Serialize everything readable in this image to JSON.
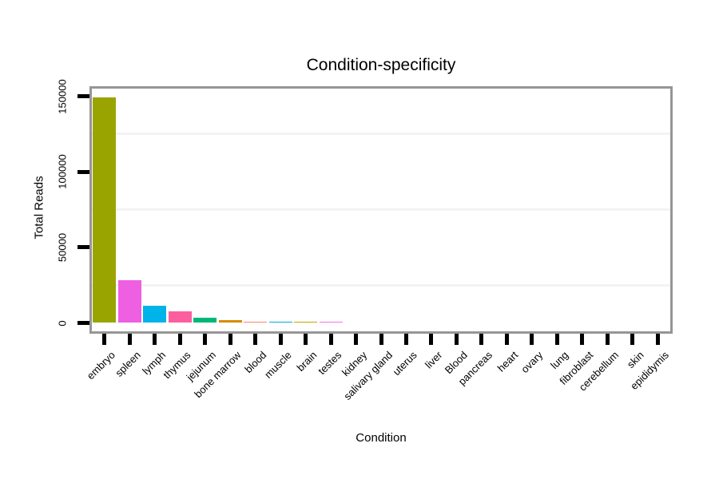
{
  "chart_data": {
    "type": "bar",
    "title": "Condition-specificity",
    "xlabel": "Condition",
    "ylabel": "Total Reads",
    "categories": [
      "embryo",
      "spleen",
      "lymph",
      "thymus",
      "jejunum",
      "bone marrow",
      "blood",
      "muscle",
      "brain",
      "testes",
      "kidney",
      "salivary gland",
      "uterus",
      "liver",
      "Blood",
      "pancreas",
      "heart",
      "ovary",
      "lung",
      "fibroblast",
      "cerebellum",
      "skin",
      "epididymis"
    ],
    "values": [
      149000,
      28000,
      11500,
      7600,
      3400,
      1900,
      1000,
      1000,
      900,
      800,
      0,
      0,
      0,
      0,
      0,
      0,
      0,
      0,
      0,
      0,
      0,
      0,
      0
    ],
    "bar_colors": [
      "#9aa400",
      "#ee5fe2",
      "#00b3e9",
      "#fb5f9e",
      "#00b777",
      "#d68b00",
      "#f58576",
      "#00abe7",
      "#c7a300",
      "#f375e6",
      null,
      null,
      null,
      null,
      null,
      null,
      null,
      null,
      null,
      null,
      null,
      null,
      null
    ],
    "yticks": [
      0,
      50000,
      100000,
      150000
    ],
    "ytick_labels": [
      "0",
      "50000",
      "100000",
      "150000"
    ],
    "minor_gridlines": [
      25000,
      75000,
      125000
    ],
    "ylim": [
      0,
      155000
    ],
    "grid": "faint horizontal minor gridlines only",
    "legend": "none",
    "axis_text_rotation": {
      "x_degrees": 45,
      "y_degrees": 90
    },
    "frame_color": "#969696",
    "tick_color": "#000000",
    "background_color": "#ffffff"
  }
}
